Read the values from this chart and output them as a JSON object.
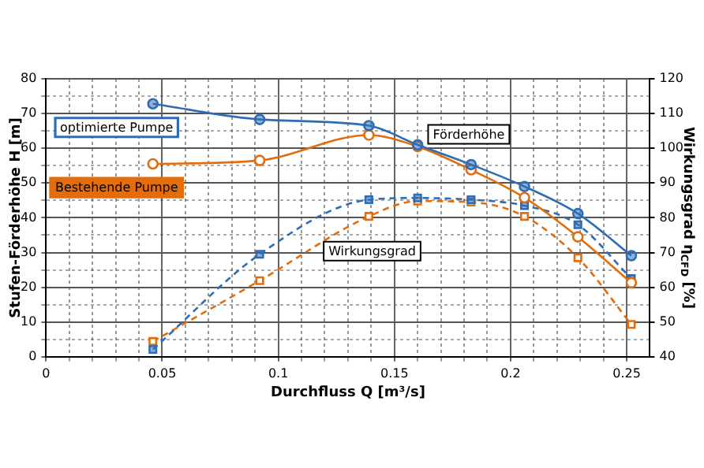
{
  "chart_data": {
    "type": "line",
    "xlabel": "Durchfluss Q [m³/s]",
    "ylabel": "Stufen-Förderhöhe H [m]",
    "y2label": "Wirkungsgrad η$_{CFD}$ [%]",
    "x": [
      0.046,
      0.092,
      0.139,
      0.16,
      0.183,
      0.206,
      0.229,
      0.252
    ],
    "series": [
      {
        "name": "optimierte Pumpe",
        "color": "#2e6db4",
        "values": [
          72.8,
          68.3,
          66.5,
          61,
          55.3,
          49,
          41.2,
          29.1
        ],
        "marker": "circle",
        "line_style": "solid"
      },
      {
        "name": "Bestehende Pumpe",
        "color": "#e46c0a",
        "values": [
          55.5,
          56.5,
          63.8,
          60.5,
          53.8,
          45.8,
          34.5,
          21.3
        ],
        "marker": "circle",
        "line_style": "solid"
      },
      {
        "color": "#2e6db4",
        "axis": "y2",
        "values": [
          42.1,
          69.5,
          85.2,
          85.7,
          85.2,
          83.5,
          78,
          62.5
        ],
        "marker": "square",
        "line_style": "dashed"
      },
      {
        "color": "#e46c0a",
        "axis": "y2",
        "values": [
          44.4,
          61.9,
          80.4,
          84.8,
          84.5,
          80.4,
          68.5,
          49.3
        ],
        "marker": "square",
        "line_style": "dashed"
      }
    ],
    "xlim": [
      0,
      0.26
    ],
    "xticks": [
      0,
      {
        "value": 0.01,
        "label": null
      },
      {
        "value": 0.02,
        "label": null
      },
      {
        "value": 0.03,
        "label": null
      },
      {
        "value": 0.04,
        "label": null
      },
      0.05,
      {
        "value": 0.06,
        "label": null
      },
      {
        "value": 0.07,
        "label": null
      },
      {
        "value": 0.08,
        "label": null
      },
      {
        "value": 0.09,
        "label": null
      },
      {
        "value": 0.1,
        "label": "0.1"
      },
      {
        "value": 0.11,
        "label": null
      },
      {
        "value": 0.12,
        "label": null
      },
      {
        "value": 0.13,
        "label": null
      },
      {
        "value": 0.14,
        "label": null
      },
      0.15,
      {
        "value": 0.16,
        "label": null
      },
      {
        "value": 0.17,
        "label": null
      },
      {
        "value": 0.18,
        "label": null
      },
      {
        "value": 0.19,
        "label": null
      },
      {
        "value": 0.2,
        "label": "0.2"
      },
      {
        "value": 0.21,
        "label": null
      },
      {
        "value": 0.22,
        "label": null
      },
      {
        "value": 0.23,
        "label": null
      },
      {
        "value": 0.24,
        "label": null
      },
      0.25
    ],
    "ylim": [
      0,
      80
    ],
    "yticks": [
      0,
      {
        "value": 5,
        "label": null
      },
      10,
      {
        "value": 15,
        "label": null
      },
      20,
      {
        "value": 25,
        "label": null
      },
      30,
      {
        "value": 35,
        "label": null
      },
      40,
      {
        "value": 45,
        "label": null
      },
      50,
      {
        "value": 55,
        "label": null
      },
      60,
      {
        "value": 65,
        "label": null
      },
      70,
      {
        "value": 75,
        "label": null
      },
      80
    ],
    "y2lim": [
      40,
      120
    ],
    "y2ticks": [
      40,
      50,
      60,
      70,
      80,
      90,
      100,
      110,
      120
    ],
    "grid": true,
    "legend": false,
    "annotations": [
      "Förderhöhe",
      "Wirkungsgrad"
    ]
  }
}
